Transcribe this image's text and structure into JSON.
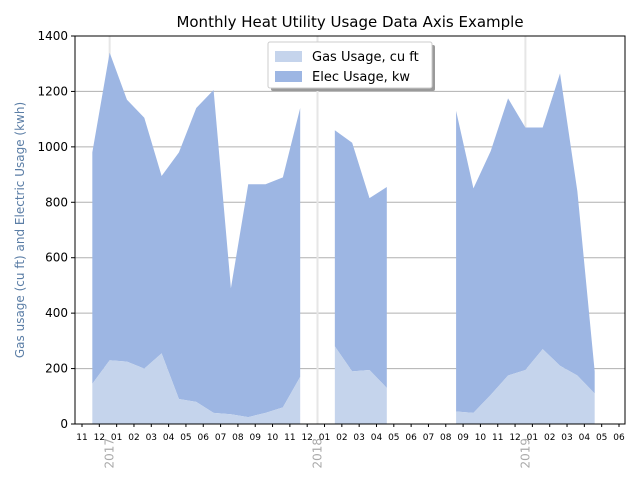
{
  "chart_data": {
    "type": "area",
    "title": "Monthly Heat Utility Usage Data Axis Example",
    "xlabel": "",
    "ylabel": "Gas usage (cu ft) and Electric Usage (kwh)",
    "ylim": [
      0,
      1400
    ],
    "yticks": [
      0,
      200,
      400,
      600,
      800,
      1000,
      1200,
      1400
    ],
    "xlim": [
      "2016-11",
      "2019-06"
    ],
    "xtick_labels": [
      "11",
      "12",
      "01",
      "02",
      "03",
      "04",
      "05",
      "06",
      "07",
      "08",
      "09",
      "10",
      "11",
      "12",
      "01",
      "02",
      "03",
      "04",
      "05",
      "06",
      "07",
      "08",
      "09",
      "10",
      "11",
      "12",
      "01",
      "02",
      "03",
      "04",
      "05",
      "06"
    ],
    "year_labels": [
      {
        "label": "2017",
        "month": "2017-01"
      },
      {
        "label": "2018",
        "month": "2018-01"
      },
      {
        "label": "2019",
        "month": "2019-01"
      }
    ],
    "grid": {
      "y": true,
      "x_years": true
    },
    "legend_position": "top-center",
    "x": [
      "2016-12",
      "2017-01",
      "2017-02",
      "2017-03",
      "2017-04",
      "2017-05",
      "2017-06",
      "2017-07",
      "2017-08",
      "2017-09",
      "2017-10",
      "2017-11",
      "2017-12",
      "2018-01",
      "2018-02",
      "2018-03",
      "2018-04",
      "2018-05",
      "2018-06",
      "2018-07",
      "2018-08",
      "2018-09",
      "2018-10",
      "2018-11",
      "2018-12",
      "2019-01",
      "2019-02",
      "2019-03",
      "2019-04",
      "2019-05"
    ],
    "series": [
      {
        "name": "Gas Usage, cu ft",
        "color": "#c5d4ec",
        "values": [
          145,
          230,
          225,
          200,
          255,
          90,
          80,
          40,
          35,
          25,
          40,
          60,
          170,
          null,
          280,
          190,
          195,
          130,
          null,
          null,
          null,
          45,
          40,
          105,
          175,
          195,
          270,
          210,
          175,
          110
        ]
      },
      {
        "name": "Elec Usage, kw",
        "color": "#9db6e3",
        "values": [
          980,
          1340,
          1170,
          1105,
          895,
          980,
          1140,
          1205,
          490,
          865,
          865,
          890,
          1140,
          null,
          1060,
          1015,
          815,
          855,
          null,
          null,
          null,
          1130,
          850,
          985,
          1175,
          1070,
          1070,
          1265,
          840,
          190
        ]
      }
    ]
  }
}
